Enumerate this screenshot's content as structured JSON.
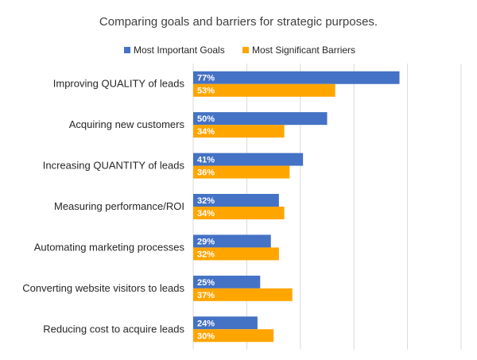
{
  "chart_data": {
    "type": "bar",
    "orientation": "horizontal",
    "title": "Comparing goals and barriers for strategic purposes.",
    "categories": [
      "Improving QUALITY of leads",
      "Acquiring new customers",
      "Increasing QUANTITY of leads",
      "Measuring performance/ROI",
      "Automating marketing processes",
      "Converting website visitors to leads",
      "Reducing cost to acquire leads"
    ],
    "series": [
      {
        "name": "Most Important Goals",
        "color": "#4472c4",
        "values": [
          77,
          50,
          41,
          32,
          29,
          25,
          24
        ]
      },
      {
        "name": "Most Significant Barriers",
        "color": "#ffa500",
        "values": [
          53,
          34,
          36,
          34,
          32,
          37,
          30
        ]
      }
    ],
    "value_suffix": "%",
    "xlim": [
      0,
      100
    ],
    "x_gridlines": [
      0,
      20,
      40,
      60,
      80,
      100
    ],
    "grid": true,
    "legend_position": "top"
  }
}
